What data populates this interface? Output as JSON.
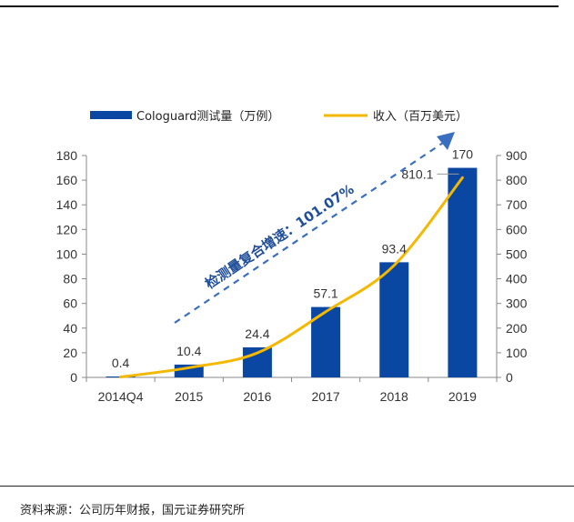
{
  "footer": {
    "source": "资料来源：公司历年财报，国元证券研究所"
  },
  "chart_data": {
    "type": "bar",
    "categories": [
      "2014Q4",
      "2015",
      "2016",
      "2017",
      "2018",
      "2019"
    ],
    "series": [
      {
        "name": "Cologuard测试量（万例）",
        "type": "bar",
        "axis": "left",
        "values": [
          0.4,
          10.4,
          24.4,
          57.1,
          93.4,
          170
        ],
        "color": "#0a47a3"
      },
      {
        "name": "收入（百万美元）",
        "type": "line",
        "axis": "right",
        "values": [
          1.8,
          39.4,
          99.4,
          266.3,
          454.5,
          810.1
        ],
        "color": "#f5b800"
      }
    ],
    "bar_labels": [
      "0.4",
      "10.4",
      "24.4",
      "57.1",
      "93.4",
      "170"
    ],
    "line_label": {
      "index": 5,
      "text": "810.1"
    },
    "y_left": {
      "min": 0,
      "max": 180,
      "step": 20,
      "ticks": [
        "0",
        "20",
        "40",
        "60",
        "80",
        "100",
        "120",
        "140",
        "160",
        "180"
      ]
    },
    "y_right": {
      "min": 0,
      "max": 900,
      "step": 100,
      "ticks": [
        "0",
        "100",
        "200",
        "300",
        "400",
        "500",
        "600",
        "700",
        "800",
        "900"
      ]
    },
    "annotation": {
      "text": "检测量复合增速：101.07%",
      "color": "#1f4e9a"
    },
    "legend_position": "top",
    "grid": false
  }
}
